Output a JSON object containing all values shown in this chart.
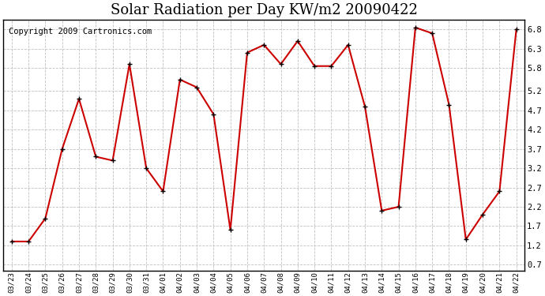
{
  "title": "Solar Radiation per Day KW/m2 20090422",
  "copyright": "Copyright 2009 Cartronics.com",
  "dates": [
    "03/23",
    "03/24",
    "03/25",
    "03/26",
    "03/27",
    "03/28",
    "03/29",
    "03/30",
    "03/31",
    "04/01",
    "04/02",
    "04/03",
    "04/04",
    "04/05",
    "04/06",
    "04/07",
    "04/08",
    "04/09",
    "04/10",
    "04/11",
    "04/12",
    "04/13",
    "04/14",
    "04/15",
    "04/16",
    "04/17",
    "04/18",
    "04/19",
    "04/20",
    "04/21",
    "04/22"
  ],
  "values": [
    1.3,
    1.3,
    1.9,
    3.7,
    5.0,
    3.5,
    3.4,
    5.9,
    3.2,
    2.6,
    5.5,
    5.3,
    4.6,
    1.6,
    6.2,
    6.4,
    5.9,
    6.5,
    5.85,
    5.85,
    6.4,
    4.8,
    2.1,
    2.2,
    6.85,
    6.7,
    4.85,
    1.35,
    2.0,
    2.6,
    6.8
  ],
  "line_color": "#cc0000",
  "marker_color": "#000000",
  "bg_color": "#ffffff",
  "plot_bg_color": "#ffffff",
  "grid_color": "#c0c0c0",
  "yticks": [
    0.7,
    1.2,
    1.7,
    2.2,
    2.7,
    3.2,
    3.7,
    4.2,
    4.7,
    5.2,
    5.8,
    6.3,
    6.8
  ],
  "ylim": [
    0.55,
    7.05
  ],
  "title_fontsize": 13,
  "copyright_fontsize": 7.5
}
